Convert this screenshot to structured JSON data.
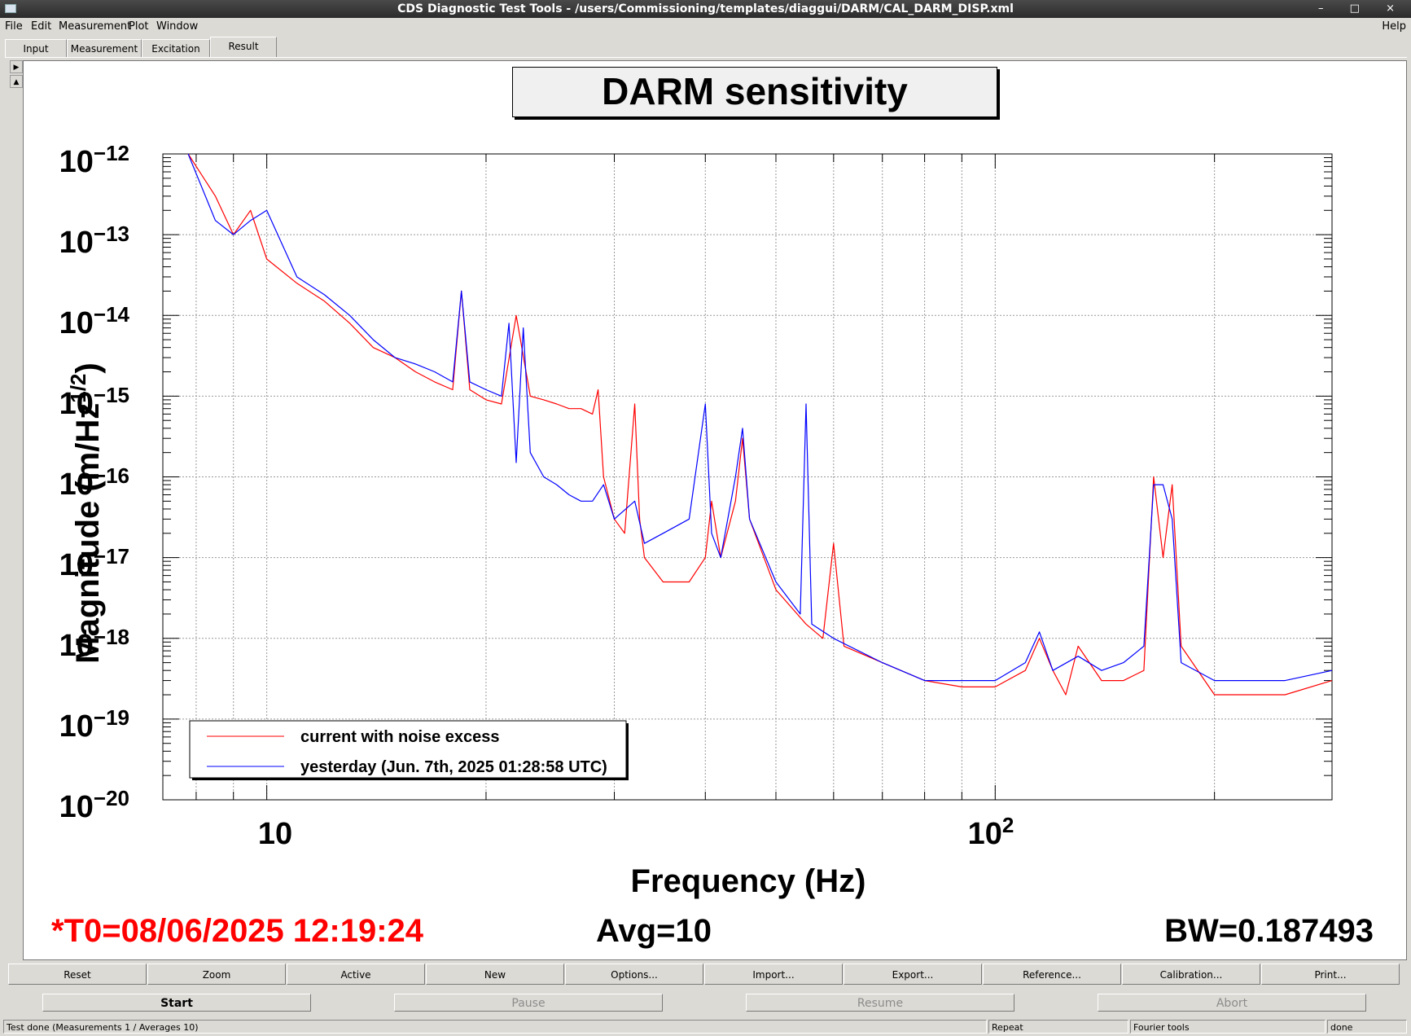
{
  "window": {
    "title": "CDS Diagnostic Test Tools - /users/Commissioning/templates/diaggui/DARM/CAL_DARM_DISP.xml",
    "buttons": "– □ ×"
  },
  "menu": {
    "items": [
      "File",
      "Edit",
      "Measurement",
      "Plot",
      "Window"
    ],
    "help": "Help"
  },
  "tabs": [
    {
      "label": "Input"
    },
    {
      "label": "Measurement"
    },
    {
      "label": "Excitation"
    },
    {
      "label": "Result",
      "active": true
    }
  ],
  "side_arrows": [
    "▶",
    "▲"
  ],
  "plot": {
    "title": "DARM sensitivity",
    "xlabel": "Frequency (Hz)",
    "ylabel": "Magnitude (m/Hz",
    "ylabel_exp": "1/2",
    "ylabel_close": ")",
    "x_ticks": [
      {
        "base": "10",
        "exp": ""
      },
      {
        "base": "10",
        "exp": "2"
      }
    ],
    "y_ticks": [
      {
        "base": "10",
        "exp": "−12"
      },
      {
        "base": "10",
        "exp": "−13"
      },
      {
        "base": "10",
        "exp": "−14"
      },
      {
        "base": "10",
        "exp": "−15"
      },
      {
        "base": "10",
        "exp": "−16"
      },
      {
        "base": "10",
        "exp": "−17"
      },
      {
        "base": "10",
        "exp": "−18"
      },
      {
        "base": "10",
        "exp": "−19"
      },
      {
        "base": "10",
        "exp": "−20"
      }
    ],
    "legend": [
      {
        "label": "current with noise excess",
        "color": "#ff0000"
      },
      {
        "label": "yesterday (Jun. 7th, 2025 01:28:58 UTC)",
        "color": "#0000ff"
      }
    ],
    "t0": "*T0=08/06/2025 12:19:24",
    "avg": "Avg=10",
    "bw": "BW=0.187493"
  },
  "chart_data": {
    "type": "line",
    "x_scale": "log",
    "y_scale": "log",
    "xlim": [
      7.2,
      290
    ],
    "ylim": [
      1e-20,
      1e-12
    ],
    "grid": true,
    "legend_position": "bottom-left",
    "series": [
      {
        "name": "current with noise excess",
        "color": "#ff0000",
        "x": [
          7.8,
          8.5,
          9.0,
          9.5,
          10.0,
          11.0,
          12.0,
          13.0,
          14.0,
          15.0,
          16.0,
          17.0,
          18.0,
          18.5,
          19.0,
          20.0,
          21.0,
          22.0,
          23.0,
          24.0,
          25.0,
          26.0,
          27.0,
          28.0,
          28.5,
          29.0,
          30.0,
          31.0,
          32.0,
          32.5,
          33.0,
          35.0,
          38.0,
          40.0,
          40.8,
          42.0,
          44.0,
          45.0,
          46.0,
          50.0,
          55.0,
          58.0,
          60.0,
          62.0,
          70.0,
          80.0,
          90.0,
          100.0,
          110.0,
          115.0,
          120.0,
          125.0,
          130.0,
          140.0,
          150.0,
          160.0,
          165.0,
          170.0,
          175.0,
          180.0,
          200.0,
          220.0,
          250.0,
          290.0
        ],
        "y": [
          1e-12,
          3e-13,
          1e-13,
          2e-13,
          5e-14,
          2.5e-14,
          1.5e-14,
          8e-15,
          4e-15,
          3e-15,
          2e-15,
          1.5e-15,
          1.2e-15,
          2e-14,
          1.2e-15,
          9e-16,
          8e-16,
          1e-14,
          1e-15,
          9e-16,
          8e-16,
          7e-16,
          7e-16,
          6e-16,
          1.2e-15,
          1e-16,
          3e-17,
          2e-17,
          8e-16,
          3e-17,
          1e-17,
          5e-18,
          5e-18,
          1e-17,
          5e-17,
          1e-17,
          5e-17,
          3e-16,
          3e-17,
          4e-18,
          1.5e-18,
          1e-18,
          1.5e-17,
          8e-19,
          5e-19,
          3e-19,
          2.5e-19,
          2.5e-19,
          4e-19,
          1e-18,
          4e-19,
          2e-19,
          8e-19,
          3e-19,
          3e-19,
          4e-19,
          1e-16,
          1e-17,
          8e-17,
          8e-19,
          2e-19,
          2e-19,
          2e-19,
          3e-19
        ]
      },
      {
        "name": "yesterday (Jun. 7th, 2025 01:28:58 UTC)",
        "color": "#0000ff",
        "x": [
          7.8,
          8.5,
          9.0,
          9.5,
          10.0,
          11.0,
          12.0,
          13.0,
          14.0,
          15.0,
          16.0,
          17.0,
          18.0,
          18.5,
          19.0,
          20.0,
          21.0,
          21.5,
          22.0,
          22.5,
          23.0,
          24.0,
          25.0,
          26.0,
          27.0,
          28.0,
          29.0,
          30.0,
          32.0,
          33.0,
          35.0,
          38.0,
          40.0,
          40.8,
          42.0,
          44.0,
          45.0,
          46.0,
          50.0,
          54.0,
          55.0,
          56.0,
          60.0,
          70.0,
          80.0,
          90.0,
          100.0,
          110.0,
          115.0,
          120.0,
          130.0,
          140.0,
          150.0,
          160.0,
          165.0,
          170.0,
          175.0,
          180.0,
          200.0,
          220.0,
          250.0,
          290.0
        ],
        "y": [
          1e-12,
          1.5e-13,
          1e-13,
          1.5e-13,
          2e-13,
          3e-14,
          1.8e-14,
          1e-14,
          5e-15,
          3e-15,
          2.5e-15,
          2e-15,
          1.5e-15,
          2e-14,
          1.5e-15,
          1.2e-15,
          1e-15,
          8e-15,
          1.5e-16,
          7e-15,
          2e-16,
          1e-16,
          8e-17,
          6e-17,
          5e-17,
          5e-17,
          8e-17,
          3e-17,
          5e-17,
          1.5e-17,
          2e-17,
          3e-17,
          8e-16,
          2e-17,
          1e-17,
          1e-16,
          4e-16,
          3e-17,
          5e-18,
          2e-18,
          8e-16,
          1.5e-18,
          1e-18,
          5e-19,
          3e-19,
          3e-19,
          3e-19,
          5e-19,
          1.2e-18,
          4e-19,
          6e-19,
          4e-19,
          5e-19,
          8e-19,
          8e-17,
          8e-17,
          3e-17,
          5e-19,
          3e-19,
          3e-19,
          3e-19,
          4e-19
        ]
      }
    ]
  },
  "toolbar": [
    "Reset",
    "Zoom",
    "Active",
    "New",
    "Options...",
    "Import...",
    "Export...",
    "Reference...",
    "Calibration...",
    "Print..."
  ],
  "run_buttons": [
    {
      "label": "Start",
      "enabled": true
    },
    {
      "label": "Pause",
      "enabled": false
    },
    {
      "label": "Resume",
      "enabled": false
    },
    {
      "label": "Abort",
      "enabled": false
    }
  ],
  "status": {
    "message": "Test done (Measurements 1 / Averages 10)",
    "repeat": "Repeat",
    "fourier": "Fourier tools",
    "state": "done"
  }
}
